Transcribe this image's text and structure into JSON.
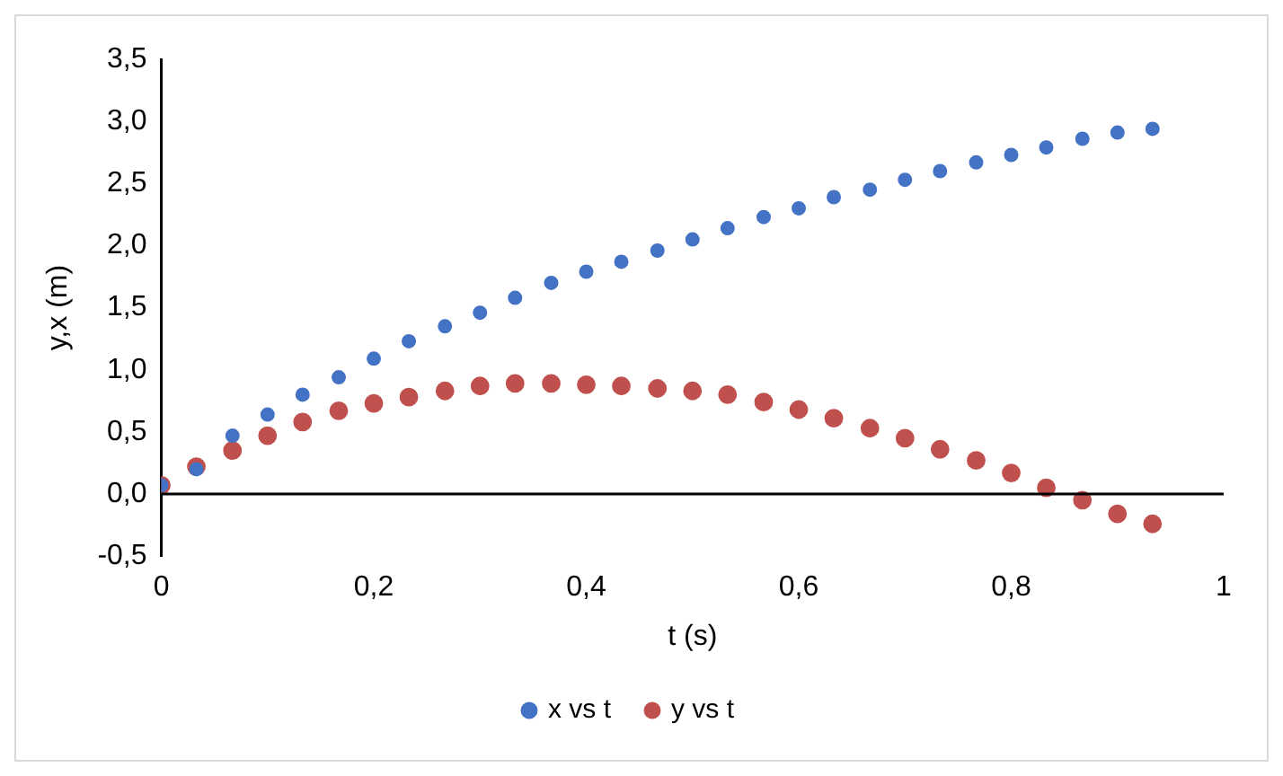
{
  "chart_data": {
    "type": "scatter",
    "xlabel": "t (s)",
    "ylabel": "y,x (m)",
    "xlim": [
      0,
      1
    ],
    "xticks": [
      0,
      {
        "value": 0.2,
        "label": "0,2"
      },
      {
        "value": 0.4,
        "label": "0,4"
      },
      {
        "value": 0.6,
        "label": "0,6"
      },
      {
        "value": 0.8,
        "label": "0,8"
      },
      1
    ],
    "ylim": [
      -0.5,
      3.5
    ],
    "yticks": [
      {
        "value": -0.5,
        "label": "-0,5"
      },
      {
        "value": 0,
        "label": "0,0"
      },
      {
        "value": 0.5,
        "label": "0,5"
      },
      {
        "value": 1,
        "label": "1,0"
      },
      {
        "value": 1.5,
        "label": "1,5"
      },
      {
        "value": 2,
        "label": "2,0"
      },
      {
        "value": 2.5,
        "label": "2,5"
      },
      {
        "value": 3,
        "label": "3,0"
      },
      {
        "value": 3.5,
        "label": "3,5"
      }
    ],
    "x": [
      0,
      0.033,
      0.067,
      0.1,
      0.133,
      0.167,
      0.2,
      0.233,
      0.267,
      0.3,
      0.333,
      0.367,
      0.4,
      0.433,
      0.467,
      0.5,
      0.533,
      0.567,
      0.6,
      0.633,
      0.667,
      0.7,
      0.733,
      0.767,
      0.8,
      0.833,
      0.867,
      0.9,
      0.933
    ],
    "series": [
      {
        "name": "x vs t",
        "color": "#4472c4",
        "values": [
          0.07,
          0.2,
          0.47,
          0.64,
          0.8,
          0.94,
          1.09,
          1.23,
          1.35,
          1.46,
          1.58,
          1.7,
          1.79,
          1.87,
          1.96,
          2.05,
          2.14,
          2.23,
          2.3,
          2.39,
          2.45,
          2.53,
          2.6,
          2.67,
          2.73,
          2.79,
          2.86,
          2.91,
          2.94
        ]
      },
      {
        "name": "y vs t",
        "color": "#c0504d",
        "values": [
          0.07,
          0.22,
          0.35,
          0.47,
          0.58,
          0.67,
          0.73,
          0.78,
          0.83,
          0.87,
          0.89,
          0.89,
          0.88,
          0.87,
          0.85,
          0.83,
          0.8,
          0.74,
          0.68,
          0.61,
          0.53,
          0.45,
          0.36,
          0.27,
          0.17,
          0.05,
          -0.05,
          -0.16,
          -0.24
        ]
      }
    ],
    "ref_lines": [
      {
        "axis": "y",
        "value": 0,
        "color": "#000000"
      }
    ],
    "grid": false,
    "legend": "bottom",
    "marker": "circle"
  }
}
